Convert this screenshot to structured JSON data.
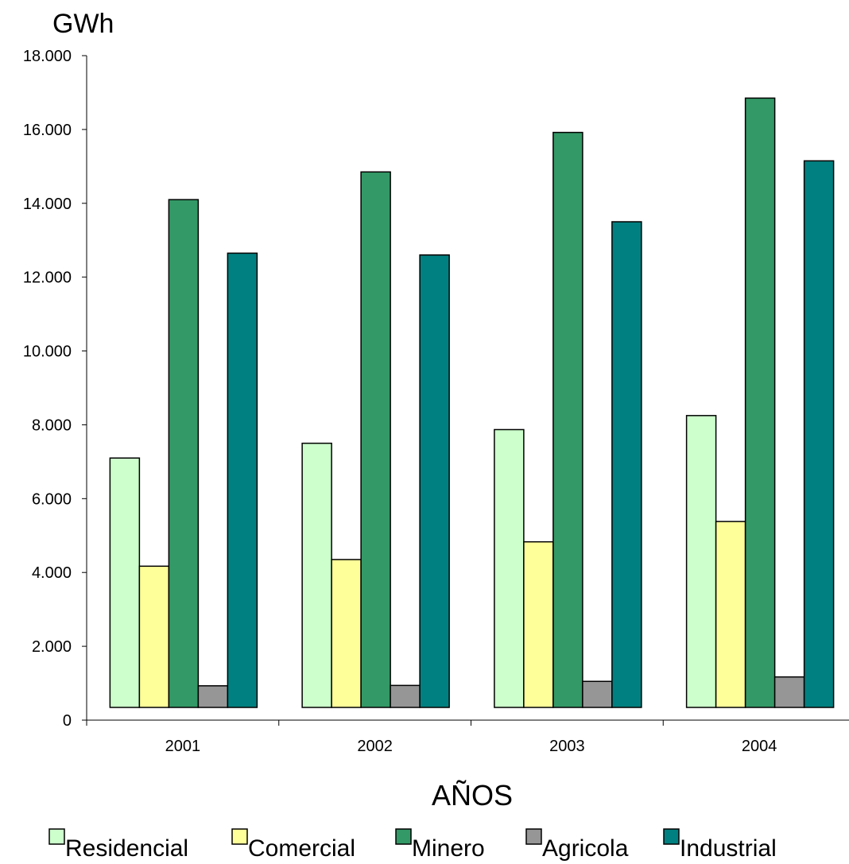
{
  "chart_data": {
    "type": "bar",
    "unit_label": "GWh",
    "xlabel": "AÑOS",
    "ylabel": "",
    "categories": [
      "2001",
      "2002",
      "2003",
      "2004"
    ],
    "ylim": [
      0,
      18000
    ],
    "yticks": [
      0,
      2000,
      4000,
      6000,
      8000,
      10000,
      12000,
      14000,
      16000,
      18000
    ],
    "ytick_labels": [
      "0",
      "2.000",
      "4.000",
      "6.000",
      "8.000",
      "10.000",
      "12.000",
      "14.000",
      "16.000",
      "18.000"
    ],
    "grid": false,
    "legend_position": "bottom",
    "series": [
      {
        "name": "Residencial",
        "color": "#ccffcc",
        "values": [
          7100,
          7500,
          7870,
          8250
        ]
      },
      {
        "name": "Comercial",
        "color": "#ffff99",
        "values": [
          4170,
          4350,
          4830,
          5380
        ]
      },
      {
        "name": "Minero",
        "color": "#339966",
        "values": [
          14100,
          14850,
          15920,
          16850
        ]
      },
      {
        "name": "Agricola",
        "color": "#969696",
        "values": [
          930,
          940,
          1050,
          1170
        ]
      },
      {
        "name": "Industrial",
        "color": "#008080",
        "values": [
          12650,
          12600,
          13500,
          15150
        ]
      }
    ]
  }
}
